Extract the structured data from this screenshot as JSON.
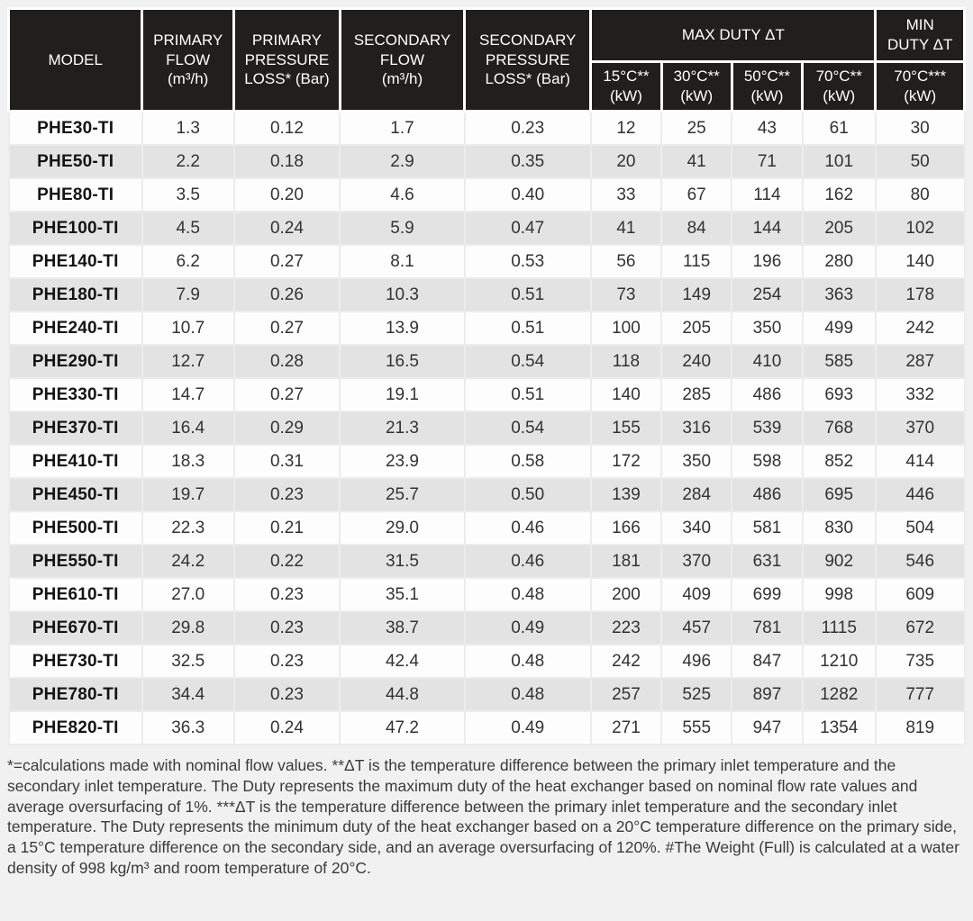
{
  "colors": {
    "header_bg": "#221e1c",
    "header_text": "#ffffff",
    "row_bg": "#fdfdfd",
    "row_alt_bg": "#e3e3e3",
    "page_bg": "#f1f1f1"
  },
  "table": {
    "headers": {
      "model": "MODEL",
      "primary_flow": "PRIMARY\nFLOW\n(m³/h)",
      "primary_pressure_loss": "PRIMARY\nPRESSURE\nLOSS* (Bar)",
      "secondary_flow": "SECONDARY\nFLOW\n(m³/h)",
      "secondary_pressure_loss": "SECONDARY\nPRESSURE\nLOSS* (Bar)",
      "max_duty_group": "MAX DUTY ΔT",
      "duty15": "15°C**\n(kW)",
      "duty30": "30°C**\n(kW)",
      "duty50": "50°C**\n(kW)",
      "duty70": "70°C**\n(kW)",
      "min_duty_group": "MIN\nDUTY ΔT",
      "min_duty70": "70°C***\n(kW)"
    },
    "rows": [
      {
        "model": "PHE30-TI",
        "primary_flow": "1.3",
        "primary_pressure_loss": "0.12",
        "secondary_flow": "1.7",
        "secondary_pressure_loss": "0.23",
        "duty15": "12",
        "duty30": "25",
        "duty50": "43",
        "duty70": "61",
        "min_duty70": "30"
      },
      {
        "model": "PHE50-TI",
        "primary_flow": "2.2",
        "primary_pressure_loss": "0.18",
        "secondary_flow": "2.9",
        "secondary_pressure_loss": "0.35",
        "duty15": "20",
        "duty30": "41",
        "duty50": "71",
        "duty70": "101",
        "min_duty70": "50"
      },
      {
        "model": "PHE80-TI",
        "primary_flow": "3.5",
        "primary_pressure_loss": "0.20",
        "secondary_flow": "4.6",
        "secondary_pressure_loss": "0.40",
        "duty15": "33",
        "duty30": "67",
        "duty50": "114",
        "duty70": "162",
        "min_duty70": "80"
      },
      {
        "model": "PHE100-TI",
        "primary_flow": "4.5",
        "primary_pressure_loss": "0.24",
        "secondary_flow": "5.9",
        "secondary_pressure_loss": "0.47",
        "duty15": "41",
        "duty30": "84",
        "duty50": "144",
        "duty70": "205",
        "min_duty70": "102"
      },
      {
        "model": "PHE140-TI",
        "primary_flow": "6.2",
        "primary_pressure_loss": "0.27",
        "secondary_flow": "8.1",
        "secondary_pressure_loss": "0.53",
        "duty15": "56",
        "duty30": "115",
        "duty50": "196",
        "duty70": "280",
        "min_duty70": "140"
      },
      {
        "model": "PHE180-TI",
        "primary_flow": "7.9",
        "primary_pressure_loss": "0.26",
        "secondary_flow": "10.3",
        "secondary_pressure_loss": "0.51",
        "duty15": "73",
        "duty30": "149",
        "duty50": "254",
        "duty70": "363",
        "min_duty70": "178"
      },
      {
        "model": "PHE240-TI",
        "primary_flow": "10.7",
        "primary_pressure_loss": "0.27",
        "secondary_flow": "13.9",
        "secondary_pressure_loss": "0.51",
        "duty15": "100",
        "duty30": "205",
        "duty50": "350",
        "duty70": "499",
        "min_duty70": "242"
      },
      {
        "model": "PHE290-TI",
        "primary_flow": "12.7",
        "primary_pressure_loss": "0.28",
        "secondary_flow": "16.5",
        "secondary_pressure_loss": "0.54",
        "duty15": "118",
        "duty30": "240",
        "duty50": "410",
        "duty70": "585",
        "min_duty70": "287"
      },
      {
        "model": "PHE330-TI",
        "primary_flow": "14.7",
        "primary_pressure_loss": "0.27",
        "secondary_flow": "19.1",
        "secondary_pressure_loss": "0.51",
        "duty15": "140",
        "duty30": "285",
        "duty50": "486",
        "duty70": "693",
        "min_duty70": "332"
      },
      {
        "model": "PHE370-TI",
        "primary_flow": "16.4",
        "primary_pressure_loss": "0.29",
        "secondary_flow": "21.3",
        "secondary_pressure_loss": "0.54",
        "duty15": "155",
        "duty30": "316",
        "duty50": "539",
        "duty70": "768",
        "min_duty70": "370"
      },
      {
        "model": "PHE410-TI",
        "primary_flow": "18.3",
        "primary_pressure_loss": "0.31",
        "secondary_flow": "23.9",
        "secondary_pressure_loss": "0.58",
        "duty15": "172",
        "duty30": "350",
        "duty50": "598",
        "duty70": "852",
        "min_duty70": "414"
      },
      {
        "model": "PHE450-TI",
        "primary_flow": "19.7",
        "primary_pressure_loss": "0.23",
        "secondary_flow": "25.7",
        "secondary_pressure_loss": "0.50",
        "duty15": "139",
        "duty30": "284",
        "duty50": "486",
        "duty70": "695",
        "min_duty70": "446"
      },
      {
        "model": "PHE500-TI",
        "primary_flow": "22.3",
        "primary_pressure_loss": "0.21",
        "secondary_flow": "29.0",
        "secondary_pressure_loss": "0.46",
        "duty15": "166",
        "duty30": "340",
        "duty50": "581",
        "duty70": "830",
        "min_duty70": "504"
      },
      {
        "model": "PHE550-TI",
        "primary_flow": "24.2",
        "primary_pressure_loss": "0.22",
        "secondary_flow": "31.5",
        "secondary_pressure_loss": "0.46",
        "duty15": "181",
        "duty30": "370",
        "duty50": "631",
        "duty70": "902",
        "min_duty70": "546"
      },
      {
        "model": "PHE610-TI",
        "primary_flow": "27.0",
        "primary_pressure_loss": "0.23",
        "secondary_flow": "35.1",
        "secondary_pressure_loss": "0.48",
        "duty15": "200",
        "duty30": "409",
        "duty50": "699",
        "duty70": "998",
        "min_duty70": "609"
      },
      {
        "model": "PHE670-TI",
        "primary_flow": "29.8",
        "primary_pressure_loss": "0.23",
        "secondary_flow": "38.7",
        "secondary_pressure_loss": "0.49",
        "duty15": "223",
        "duty30": "457",
        "duty50": "781",
        "duty70": "1115",
        "min_duty70": "672"
      },
      {
        "model": "PHE730-TI",
        "primary_flow": "32.5",
        "primary_pressure_loss": "0.23",
        "secondary_flow": "42.4",
        "secondary_pressure_loss": "0.48",
        "duty15": "242",
        "duty30": "496",
        "duty50": "847",
        "duty70": "1210",
        "min_duty70": "735"
      },
      {
        "model": "PHE780-TI",
        "primary_flow": "34.4",
        "primary_pressure_loss": "0.23",
        "secondary_flow": "44.8",
        "secondary_pressure_loss": "0.48",
        "duty15": "257",
        "duty30": "525",
        "duty50": "897",
        "duty70": "1282",
        "min_duty70": "777"
      },
      {
        "model": "PHE820-TI",
        "primary_flow": "36.3",
        "primary_pressure_loss": "0.24",
        "secondary_flow": "47.2",
        "secondary_pressure_loss": "0.49",
        "duty15": "271",
        "duty30": "555",
        "duty50": "947",
        "duty70": "1354",
        "min_duty70": "819"
      }
    ]
  },
  "footnotes": "*=calculations made with nominal flow values. **ΔT is the temperature difference between the primary inlet temperature and the secondary inlet temperature. The Duty represents the maximum duty of the heat exchanger based on nominal flow rate values and average oversurfacing of 1%. ***ΔT is the temperature difference between the primary inlet temperature and the secondary inlet temperature. The Duty represents the minimum duty of the heat exchanger based on a 20°C temperature difference on the primary side, a 15°C temperature difference on the secondary side, and an average oversurfacing of 120%. #The Weight (Full) is calculated at a water density of 998 kg/m³ and room temperature of 20°C."
}
